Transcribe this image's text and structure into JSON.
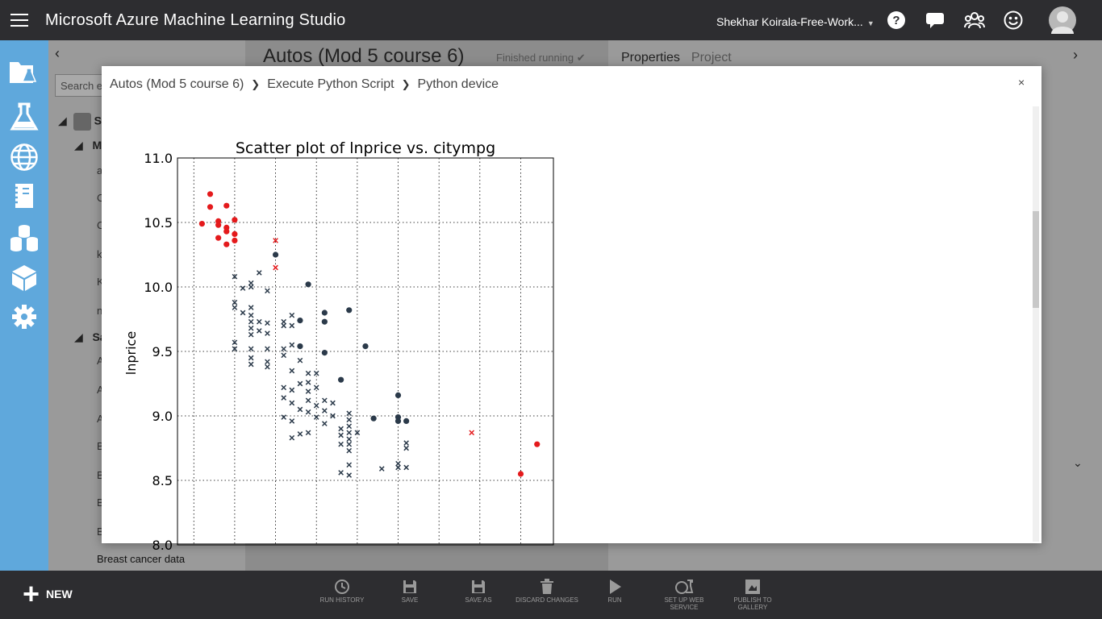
{
  "app": {
    "title": "Microsoft Azure Machine Learning Studio",
    "workspace": "Shekhar Koirala-Free-Work..."
  },
  "palette": {
    "search_placeholder": "Search e",
    "tree": [
      {
        "label": "S"
      },
      {
        "label": "M"
      },
      {
        "label": "Sa"
      }
    ],
    "item_letters": [
      "a",
      "C",
      "C",
      "k",
      "K",
      "n",
      "A",
      "A",
      "A",
      "B",
      "B",
      "B",
      "B"
    ],
    "bottom_item": "Breast cancer data"
  },
  "experiment": {
    "title": "Autos (Mod 5 course 6)",
    "status": "Finished running"
  },
  "properties": {
    "tab_active": "Properties",
    "tab_inactive": "Project"
  },
  "modal": {
    "breadcrumb": [
      "Autos (Mod 5 course 6)",
      "Execute Python Script",
      "Python device"
    ],
    "close": "×"
  },
  "chart_data": {
    "type": "scatter",
    "title": "Scatter plot of lnprice vs. citympg",
    "xlabel": "",
    "ylabel": "lnprice",
    "ylim": [
      8.0,
      11.0
    ],
    "xlim": [
      13,
      59
    ],
    "yticks": [
      "11.0",
      "10.5",
      "10.0",
      "9.5",
      "9.0",
      "8.5",
      "8.0"
    ],
    "grid": true,
    "series": [
      {
        "marker": "circle",
        "color": "#e41a1c",
        "points": [
          [
            16,
            10.49
          ],
          [
            17,
            10.72
          ],
          [
            17,
            10.62
          ],
          [
            18,
            10.51
          ],
          [
            18,
            10.48
          ],
          [
            18,
            10.38
          ],
          [
            19,
            10.63
          ],
          [
            19,
            10.46
          ],
          [
            19,
            10.43
          ],
          [
            19,
            10.33
          ],
          [
            20,
            10.52
          ],
          [
            20,
            10.41
          ],
          [
            20,
            10.36
          ],
          [
            55,
            8.55
          ],
          [
            57,
            8.78
          ]
        ]
      },
      {
        "marker": "x",
        "color": "#e41a1c",
        "points": [
          [
            25,
            10.36
          ],
          [
            25,
            10.15
          ],
          [
            49,
            8.87
          ]
        ]
      },
      {
        "marker": "circle",
        "color": "#2b3a4a",
        "points": [
          [
            25,
            10.25
          ],
          [
            29,
            10.02
          ],
          [
            28,
            9.74
          ],
          [
            28,
            9.54
          ],
          [
            31,
            9.8
          ],
          [
            31,
            9.73
          ],
          [
            31,
            9.49
          ],
          [
            34,
            9.82
          ],
          [
            33,
            9.28
          ],
          [
            36,
            9.54
          ],
          [
            37,
            8.98
          ],
          [
            40,
            9.16
          ],
          [
            40,
            8.99
          ],
          [
            40,
            8.96
          ],
          [
            41,
            8.96
          ]
        ]
      },
      {
        "marker": "x",
        "color": "#2b3a4a",
        "points": [
          [
            20,
            10.08
          ],
          [
            20,
            9.88
          ],
          [
            20,
            9.84
          ],
          [
            20,
            9.57
          ],
          [
            20,
            9.52
          ],
          [
            21,
            9.99
          ],
          [
            21,
            9.8
          ],
          [
            22,
            10.03
          ],
          [
            22,
            10.0
          ],
          [
            22,
            9.84
          ],
          [
            22,
            9.78
          ],
          [
            22,
            9.73
          ],
          [
            22,
            9.68
          ],
          [
            22,
            9.63
          ],
          [
            22,
            9.52
          ],
          [
            22,
            9.45
          ],
          [
            22,
            9.4
          ],
          [
            23,
            10.11
          ],
          [
            23,
            9.73
          ],
          [
            23,
            9.66
          ],
          [
            24,
            9.97
          ],
          [
            24,
            9.72
          ],
          [
            24,
            9.64
          ],
          [
            24,
            9.52
          ],
          [
            24,
            9.42
          ],
          [
            24,
            9.38
          ],
          [
            26,
            9.73
          ],
          [
            26,
            9.7
          ],
          [
            26,
            9.52
          ],
          [
            26,
            9.47
          ],
          [
            26,
            9.22
          ],
          [
            26,
            9.14
          ],
          [
            26,
            8.99
          ],
          [
            27,
            9.78
          ],
          [
            27,
            9.7
          ],
          [
            27,
            9.55
          ],
          [
            27,
            9.35
          ],
          [
            27,
            9.2
          ],
          [
            27,
            9.1
          ],
          [
            27,
            8.96
          ],
          [
            27,
            8.83
          ],
          [
            28,
            9.43
          ],
          [
            28,
            9.25
          ],
          [
            28,
            9.05
          ],
          [
            28,
            8.86
          ],
          [
            29,
            9.33
          ],
          [
            29,
            9.26
          ],
          [
            29,
            9.19
          ],
          [
            29,
            9.12
          ],
          [
            29,
            9.03
          ],
          [
            29,
            8.87
          ],
          [
            30,
            9.33
          ],
          [
            30,
            9.22
          ],
          [
            30,
            9.08
          ],
          [
            30,
            8.99
          ],
          [
            31,
            9.12
          ],
          [
            31,
            9.04
          ],
          [
            31,
            8.94
          ],
          [
            32,
            9.1
          ],
          [
            32,
            9.0
          ],
          [
            33,
            8.9
          ],
          [
            33,
            8.85
          ],
          [
            33,
            8.78
          ],
          [
            33,
            8.56
          ],
          [
            34,
            9.02
          ],
          [
            34,
            8.97
          ],
          [
            34,
            8.92
          ],
          [
            34,
            8.87
          ],
          [
            34,
            8.82
          ],
          [
            34,
            8.78
          ],
          [
            34,
            8.73
          ],
          [
            34,
            8.62
          ],
          [
            34,
            8.54
          ],
          [
            35,
            8.87
          ],
          [
            38,
            8.59
          ],
          [
            40,
            8.63
          ],
          [
            40,
            8.6
          ],
          [
            41,
            8.79
          ],
          [
            41,
            8.75
          ],
          [
            41,
            8.6
          ]
        ]
      }
    ]
  },
  "toolbar": {
    "new_label": "NEW",
    "items": [
      {
        "label": "RUN HISTORY"
      },
      {
        "label": "SAVE"
      },
      {
        "label": "SAVE AS"
      },
      {
        "label": "DISCARD CHANGES"
      },
      {
        "label": "RUN"
      },
      {
        "label": "SET UP WEB SERVICE"
      },
      {
        "label": "PUBLISH TO GALLERY"
      }
    ]
  },
  "colors": {
    "topbar": "#2d2d30",
    "rail": "#5fa8dc",
    "marker_red": "#e41a1c",
    "marker_dark": "#2b3a4a"
  }
}
